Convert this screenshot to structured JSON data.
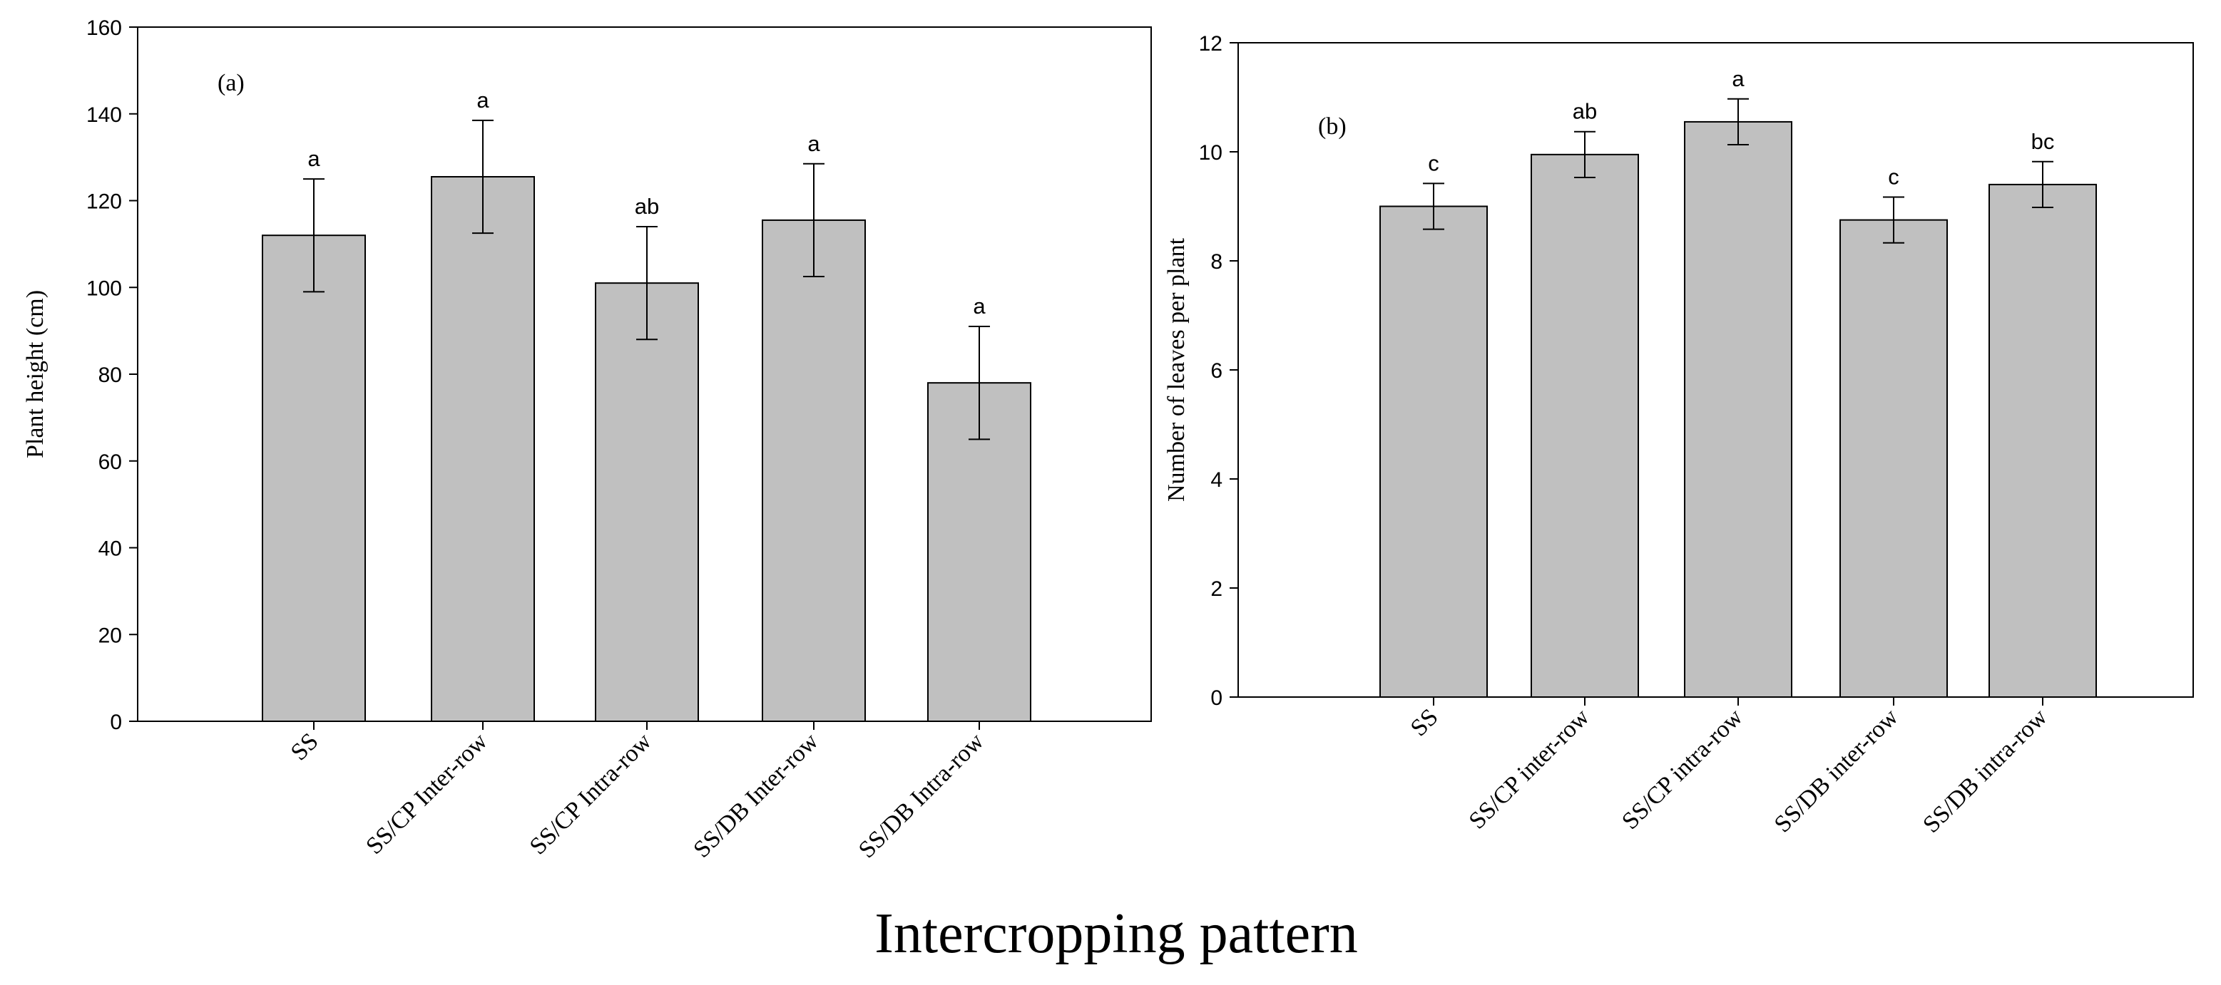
{
  "common_xlabel": "Intercropping pattern",
  "chart_data": [
    {
      "type": "bar",
      "panel_label": "(a)",
      "title": "",
      "xlabel": "Intercropping pattern",
      "ylabel": "Plant height (cm)",
      "ylim": [
        0,
        160
      ],
      "yticks": [
        0,
        20,
        40,
        60,
        80,
        100,
        120,
        140,
        160
      ],
      "categories": [
        "SS",
        "SS/CP Inter-row",
        "SS/CP Intra-row",
        "SS/DB Inter-row",
        "SS/DB Intra-row"
      ],
      "values": [
        112,
        125.5,
        101,
        115.5,
        78
      ],
      "errors": [
        13,
        13,
        13,
        13,
        13
      ],
      "significance": [
        "a",
        "a",
        "ab",
        "a",
        "a"
      ],
      "grid": false
    },
    {
      "type": "bar",
      "panel_label": "(b)",
      "title": "",
      "xlabel": "Intercropping pattern",
      "ylabel": "Number of leaves per plant",
      "ylim": [
        0,
        12
      ],
      "yticks": [
        0,
        2,
        4,
        6,
        8,
        10,
        12
      ],
      "categories": [
        "SS",
        "SS/CP inter-row",
        "SS/CP intra-row",
        "SS/DB inter-row",
        "SS/DB intra-row"
      ],
      "values": [
        9.0,
        9.95,
        10.55,
        8.75,
        9.4
      ],
      "errors": [
        0.42,
        0.42,
        0.42,
        0.42,
        0.42
      ],
      "significance": [
        "c",
        "ab",
        "a",
        "c",
        "bc"
      ],
      "grid": false
    }
  ]
}
